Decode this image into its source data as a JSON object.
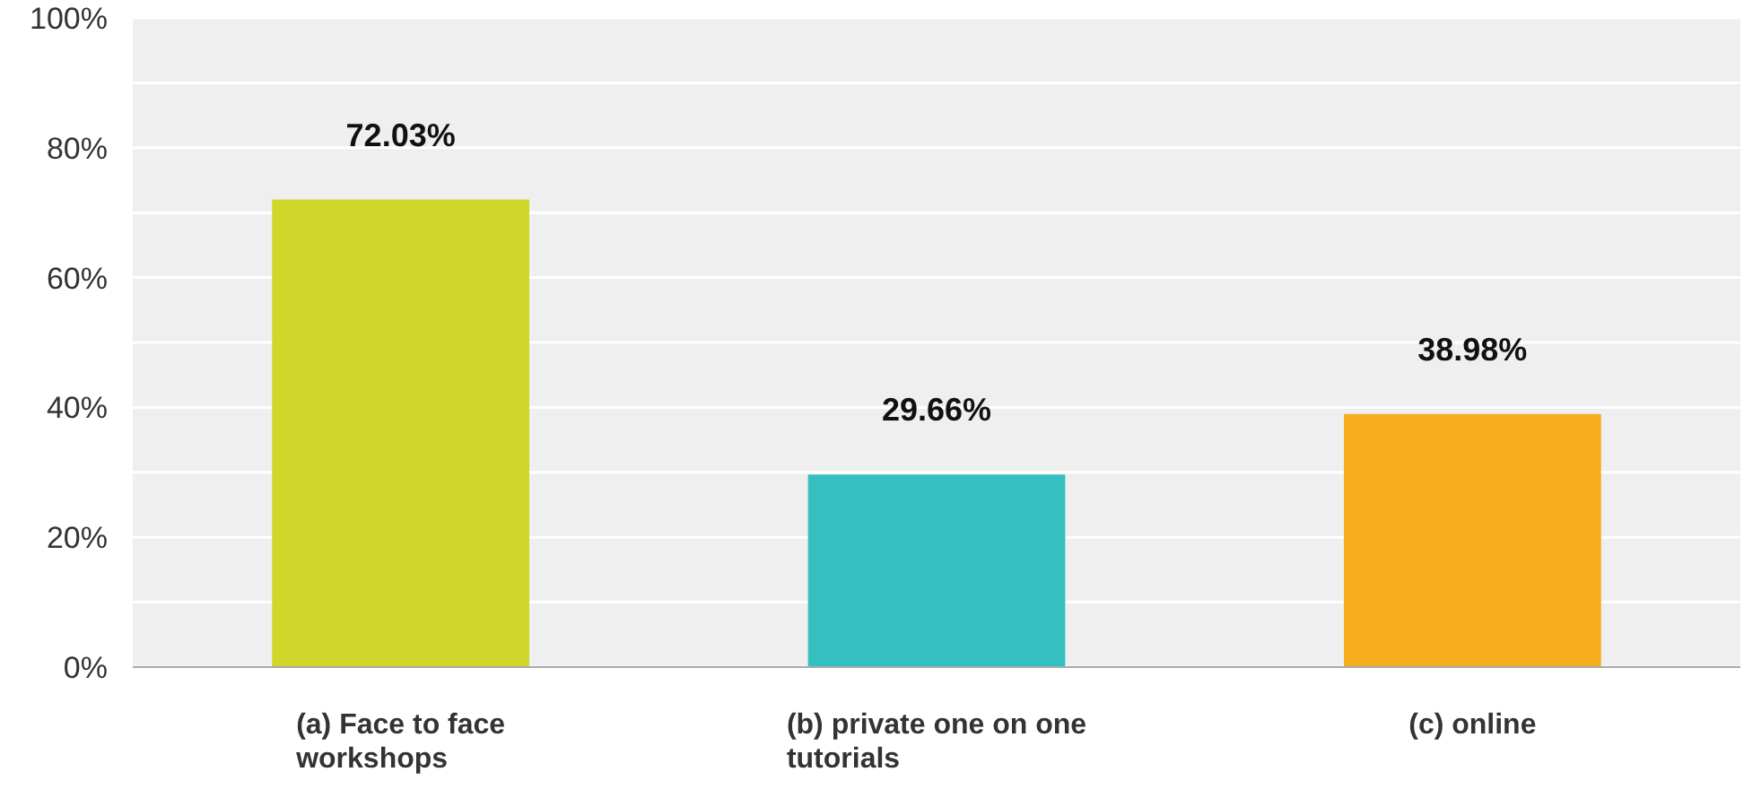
{
  "chart_data": {
    "type": "bar",
    "categories": [
      "(a) Face to face workshops",
      "(b) private one on one tutorials",
      "(c) online"
    ],
    "values": [
      72.03,
      29.66,
      38.98
    ],
    "colors": [
      "#d0d62a",
      "#35bfc0",
      "#f6ae1f"
    ],
    "value_labels": [
      "72.03%",
      "29.66%",
      "38.98%"
    ],
    "ylim": [
      0,
      100
    ],
    "yticks": [
      {
        "value": 0,
        "label": "0%"
      },
      {
        "value": 10,
        "label": null
      },
      {
        "value": 20,
        "label": "20%"
      },
      {
        "value": 30,
        "label": null
      },
      {
        "value": 40,
        "label": "40%"
      },
      {
        "value": 50,
        "label": null
      },
      {
        "value": 60,
        "label": "60%"
      },
      {
        "value": 70,
        "label": null
      },
      {
        "value": 80,
        "label": "80%"
      },
      {
        "value": 90,
        "label": null
      },
      {
        "value": 100,
        "label": "100%"
      }
    ],
    "grid": true
  }
}
